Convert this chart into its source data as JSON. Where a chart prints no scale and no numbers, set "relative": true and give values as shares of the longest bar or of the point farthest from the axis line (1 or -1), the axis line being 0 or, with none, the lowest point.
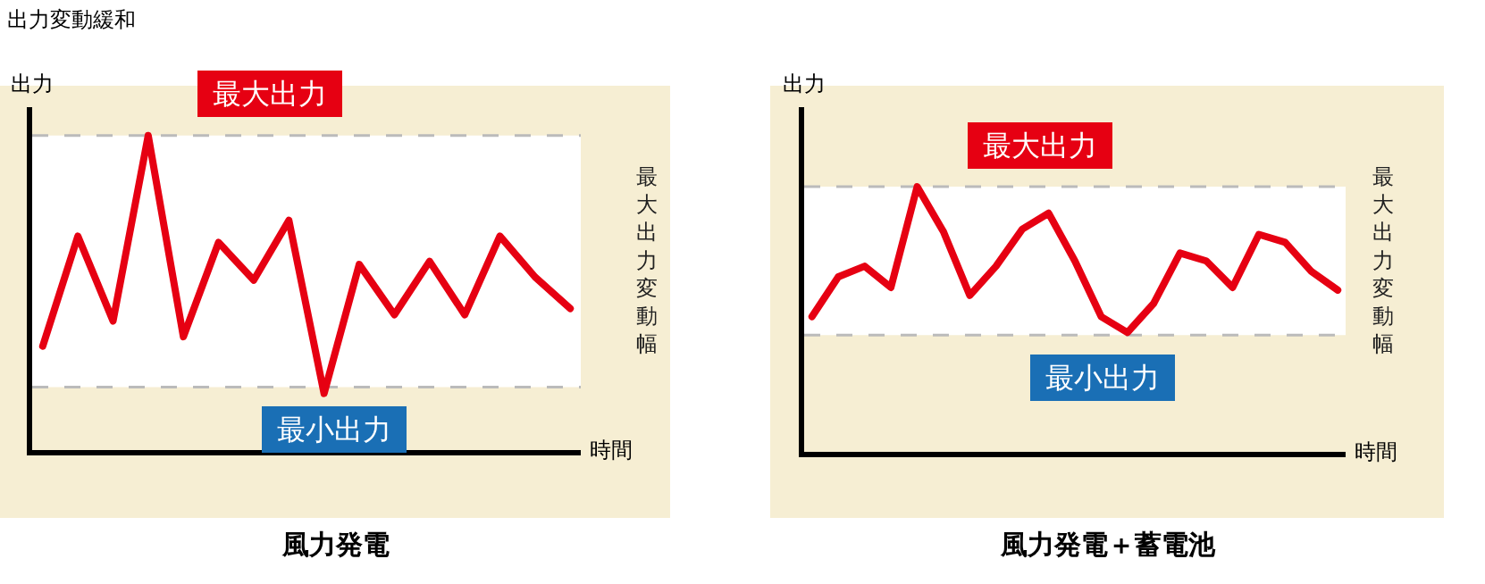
{
  "chart_data": [
    {
      "type": "line",
      "relative": true,
      "title": "出力変動緩和",
      "ylabel": "出力",
      "xlabel": "時間",
      "categories": [
        null,
        null,
        null,
        null,
        null,
        null,
        null,
        null,
        null,
        null,
        null,
        null,
        null,
        null,
        null,
        null
      ],
      "series": [
        {
          "color": "#e60012",
          "values": [
            0.33,
            0.68,
            0.41,
            1.0,
            0.36,
            0.66,
            0.54,
            0.73,
            0.18,
            0.59,
            0.43,
            0.6,
            0.43,
            0.68,
            0.55,
            0.45
          ]
        }
      ],
      "ref_lines": [
        {
          "axis": "y",
          "value": 1.0,
          "label": "最大出力",
          "color": "#bbbbbb",
          "line_style": "dashed"
        },
        {
          "axis": "y",
          "value": 0.2,
          "label": "最小出力",
          "color": "#bbbbbb",
          "line_style": "dashed"
        }
      ],
      "bands": [
        {
          "axis": "y",
          "from": 0.2,
          "to": 1.0,
          "label": "最大出力変動幅",
          "color": "#ffffff"
        }
      ],
      "annotations": [
        "風力発電"
      ]
    },
    {
      "type": "line",
      "relative": true,
      "ylabel": "出力",
      "xlabel": "時間",
      "categories": [
        null,
        null,
        null,
        null,
        null,
        null,
        null,
        null,
        null,
        null,
        null,
        null,
        null,
        null,
        null,
        null,
        null,
        null,
        null,
        null,
        null
      ],
      "series": [
        {
          "color": "#e60012",
          "values": [
            0.51,
            0.66,
            0.7,
            0.62,
            1.0,
            0.83,
            0.59,
            0.7,
            0.84,
            0.9,
            0.72,
            0.51,
            0.45,
            0.56,
            0.75,
            0.72,
            0.62,
            0.82,
            0.79,
            0.68,
            0.61
          ]
        }
      ],
      "ref_lines": [
        {
          "axis": "y",
          "value": 1.0,
          "label": "最大出力",
          "color": "#bbbbbb",
          "line_style": "dashed"
        },
        {
          "axis": "y",
          "value": 0.44,
          "label": "最小出力",
          "color": "#bbbbbb",
          "line_style": "dashed"
        }
      ],
      "bands": [
        {
          "axis": "y",
          "from": 0.44,
          "to": 1.0,
          "label": "最大出力変動幅",
          "color": "#ffffff"
        }
      ],
      "annotations": [
        "風力発電＋蓄電池"
      ]
    }
  ]
}
